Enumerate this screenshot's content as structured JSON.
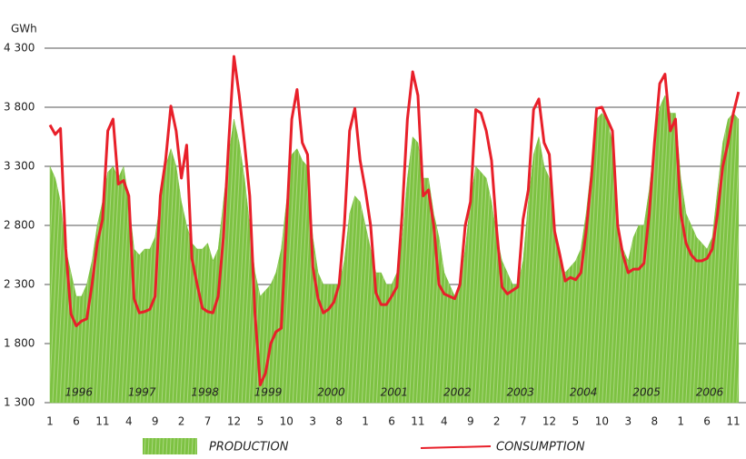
{
  "chart_data": {
    "type": "line",
    "y_axis_label": "GWh",
    "categories": [
      "1",
      null,
      null,
      null,
      null,
      "6",
      null,
      null,
      null,
      null,
      "11",
      null,
      null,
      null,
      null,
      "4",
      null,
      null,
      null,
      null,
      "9",
      null,
      null,
      null,
      null,
      "2",
      null,
      null,
      null,
      null,
      "7",
      null,
      null,
      null,
      null,
      "12",
      null,
      null,
      null,
      null,
      "5",
      null,
      null,
      null,
      null,
      "10",
      null,
      null,
      null,
      null,
      "3",
      null,
      null,
      null,
      null,
      "8",
      null,
      null,
      null,
      null,
      "1",
      null,
      null,
      null,
      null,
      "6",
      null,
      null,
      null,
      null,
      "11",
      null,
      null,
      null,
      null,
      "4",
      null,
      null,
      null,
      null,
      "9",
      null,
      null,
      null,
      null,
      "2",
      null,
      null,
      null,
      null,
      "7",
      null,
      null,
      null,
      null,
      "12",
      null,
      null,
      null,
      null,
      "5",
      null,
      null,
      null,
      null,
      "10",
      null,
      null,
      null,
      null,
      "3",
      null,
      null,
      null,
      null,
      "8",
      null,
      null,
      null,
      null,
      "1",
      null,
      null,
      null,
      null,
      "6",
      null,
      null,
      null,
      null,
      "11",
      null
    ],
    "annotations": [
      "1996",
      "1997",
      "1998",
      "1999",
      "2000",
      "2001",
      "2002",
      "2003",
      "2004",
      "2005",
      "2006"
    ],
    "series": [
      {
        "name": "PRODUCTION",
        "style": "area",
        "color": "#7dc242",
        "values": [
          3300,
          3200,
          3000,
          2600,
          2400,
          2200,
          2200,
          2300,
          2500,
          2800,
          3000,
          3250,
          3300,
          3200,
          3300,
          3000,
          2600,
          2550,
          2600,
          2600,
          2700,
          3000,
          3300,
          3450,
          3300,
          3000,
          2800,
          2650,
          2600,
          2600,
          2650,
          2500,
          2600,
          3000,
          3400,
          3700,
          3500,
          3200,
          2800,
          2400,
          2200,
          2250,
          2300,
          2400,
          2600,
          3000,
          3400,
          3450,
          3350,
          3300,
          2700,
          2400,
          2300,
          2300,
          2300,
          2300,
          2500,
          2900,
          3050,
          3000,
          2800,
          2600,
          2400,
          2400,
          2300,
          2300,
          2400,
          2700,
          3200,
          3550,
          3500,
          3200,
          3200,
          2900,
          2700,
          2400,
          2300,
          2200,
          2300,
          2600,
          3000,
          3300,
          3250,
          3200,
          3000,
          2700,
          2500,
          2400,
          2300,
          2300,
          2500,
          3000,
          3400,
          3550,
          3300,
          3200,
          2800,
          2500,
          2400,
          2450,
          2500,
          2600,
          2900,
          3300,
          3700,
          3750,
          3700,
          3500,
          2800,
          2600,
          2500,
          2700,
          2800,
          2800,
          3100,
          3500,
          3800,
          3900,
          3750,
          3750,
          3200,
          2900,
          2800,
          2700,
          2650,
          2600,
          2700,
          3100,
          3500,
          3700,
          3750,
          3700
        ]
      },
      {
        "name": "CONSUMPTION",
        "style": "line",
        "color": "#e8202a",
        "values": [
          3650,
          3570,
          3620,
          2600,
          2050,
          1950,
          1990,
          2010,
          2300,
          2650,
          2850,
          3600,
          3700,
          3150,
          3180,
          3050,
          2180,
          2060,
          2070,
          2090,
          2200,
          3050,
          3350,
          3810,
          3600,
          3200,
          3480,
          2520,
          2300,
          2100,
          2070,
          2060,
          2200,
          2700,
          3500,
          4230,
          3900,
          3500,
          3050,
          2050,
          1450,
          1550,
          1800,
          1900,
          1930,
          2800,
          3700,
          3950,
          3500,
          3400,
          2450,
          2180,
          2060,
          2090,
          2150,
          2300,
          2800,
          3600,
          3790,
          3350,
          3100,
          2800,
          2230,
          2130,
          2130,
          2200,
          2280,
          2900,
          3700,
          4100,
          3900,
          3050,
          3100,
          2800,
          2300,
          2220,
          2200,
          2180,
          2300,
          2800,
          3000,
          3780,
          3750,
          3600,
          3350,
          2750,
          2280,
          2220,
          2250,
          2280,
          2850,
          3100,
          3780,
          3870,
          3500,
          3400,
          2750,
          2550,
          2330,
          2360,
          2340,
          2400,
          2750,
          3200,
          3790,
          3800,
          3700,
          3600,
          2800,
          2550,
          2400,
          2430,
          2430,
          2480,
          2900,
          3500,
          4000,
          4080,
          3600,
          3700,
          2900,
          2650,
          2550,
          2500,
          2500,
          2520,
          2600,
          2900,
          3300,
          3500,
          3750,
          3930
        ]
      }
    ],
    "ylim": [
      1300,
      4400
    ],
    "yticks": [
      {
        "value": 1300,
        "label": "1 300"
      },
      {
        "value": 1800,
        "label": "1 800"
      },
      {
        "value": 2300,
        "label": "2 300"
      },
      {
        "value": 2800,
        "label": "2 800"
      },
      {
        "value": 3300,
        "label": "3 300"
      },
      {
        "value": 3800,
        "label": "3 800"
      },
      {
        "value": 4300,
        "label": "4 300"
      }
    ],
    "grid": true,
    "legend": "bottom"
  }
}
